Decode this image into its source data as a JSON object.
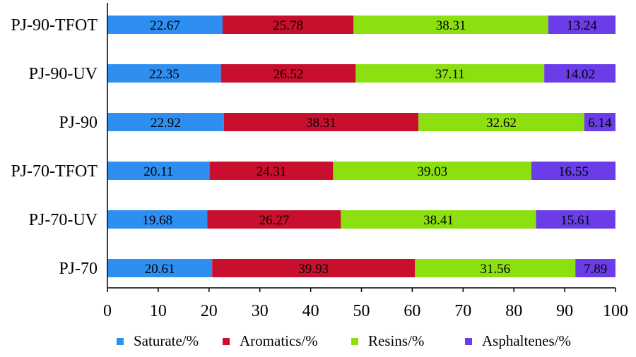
{
  "chart_data": {
    "type": "bar",
    "orientation": "horizontal",
    "stacked": true,
    "categories": [
      "PJ-90-TFOT",
      "PJ-90-UV",
      "PJ-90",
      "PJ-70-TFOT",
      "PJ-70-UV",
      "PJ-70"
    ],
    "series": [
      {
        "name": "Saturate/%",
        "color": "#2e8ff0",
        "values": [
          22.67,
          22.35,
          22.92,
          20.11,
          19.68,
          20.61
        ]
      },
      {
        "name": "Aromatics/%",
        "color": "#c8102e",
        "values": [
          25.78,
          26.52,
          38.31,
          24.31,
          26.27,
          39.93
        ]
      },
      {
        "name": "Resins/%",
        "color": "#8ce00f",
        "values": [
          38.31,
          37.11,
          32.62,
          39.03,
          38.41,
          31.56
        ]
      },
      {
        "name": "Asphaltenes/%",
        "color": "#6a3de8",
        "values": [
          13.24,
          14.02,
          6.14,
          16.55,
          15.61,
          7.89
        ]
      }
    ],
    "xlim": [
      0,
      100
    ],
    "xticks": [
      "0",
      "10",
      "20",
      "30",
      "40",
      "50",
      "60",
      "70",
      "80",
      "90",
      "100"
    ],
    "title": "",
    "xlabel": "",
    "ylabel": "",
    "grid": false,
    "legend_position": "bottom"
  }
}
